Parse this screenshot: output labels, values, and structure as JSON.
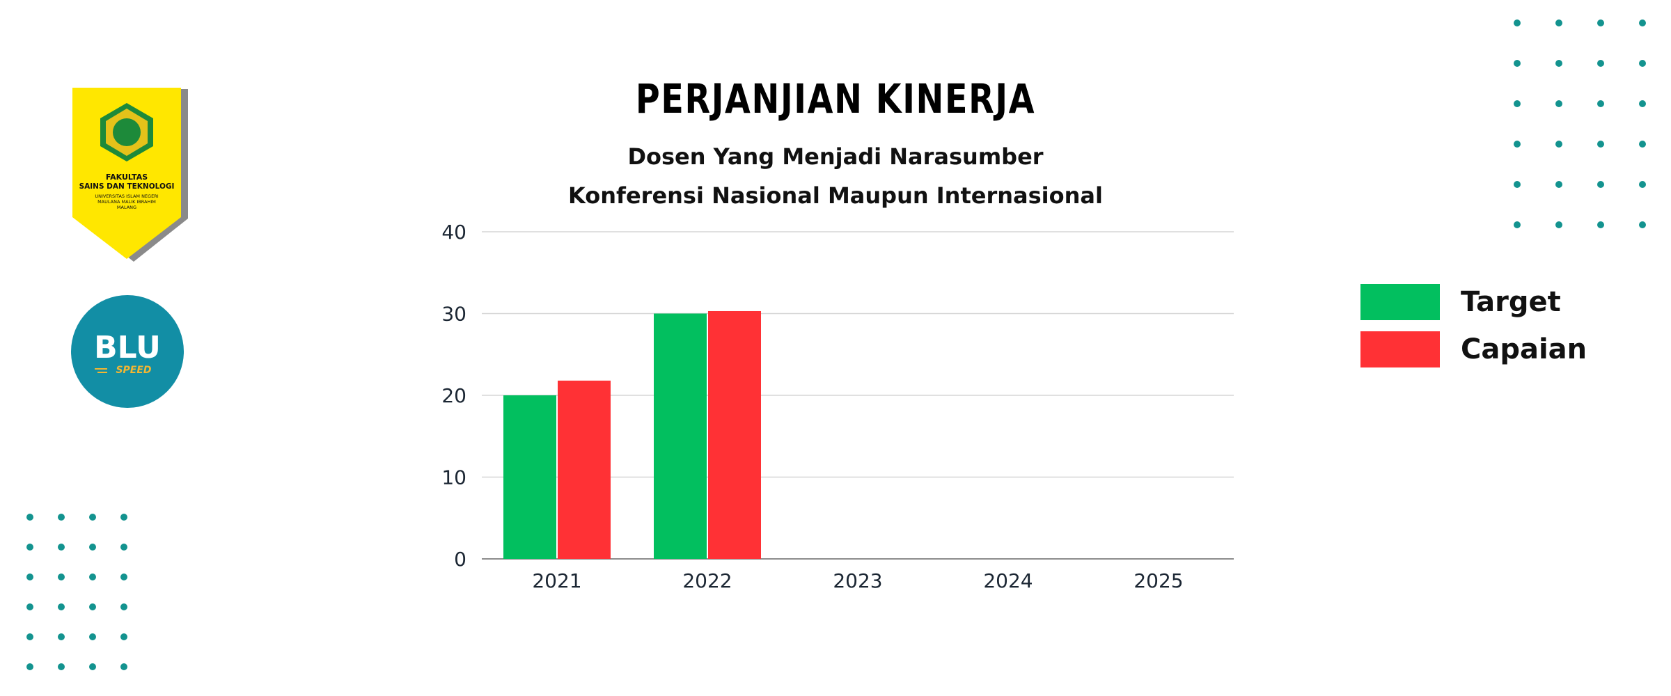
{
  "title": "PERJANJIAN KINERJA",
  "subtitle_line1": "Dosen Yang Menjadi Narasumber",
  "subtitle_line2": "Konferensi Nasional Maupun Internasional",
  "faculty_badge": {
    "line1": "FAKULTAS",
    "line2": "SAINS DAN TEKNOLOGI",
    "line3": "UNIVERSITAS ISLAM NEGERI",
    "line4": "MAULANA MALIK IBRAHIM",
    "line5": "MALANG"
  },
  "blu_badge": {
    "logo_text": "BLU",
    "sub_text": "SPEED"
  },
  "colors": {
    "target": "#02bf5f",
    "capaian": "#ff3135",
    "accent_dots": "#13938f",
    "badge_yellow": "#ffe700",
    "blu_teal": "#128ea5"
  },
  "chart_data": {
    "type": "bar",
    "categories": [
      "2021",
      "2022",
      "2023",
      "2024",
      "2025"
    ],
    "series": [
      {
        "name": "Target",
        "values": [
          20,
          30,
          null,
          null,
          null
        ]
      },
      {
        "name": "Capaian",
        "values": [
          21.8,
          30.3,
          null,
          null,
          null
        ]
      }
    ],
    "ylim": [
      0,
      40
    ],
    "yticks": [
      "0",
      "10",
      "20",
      "30",
      "40"
    ],
    "grid": true,
    "legend_position": "right"
  }
}
